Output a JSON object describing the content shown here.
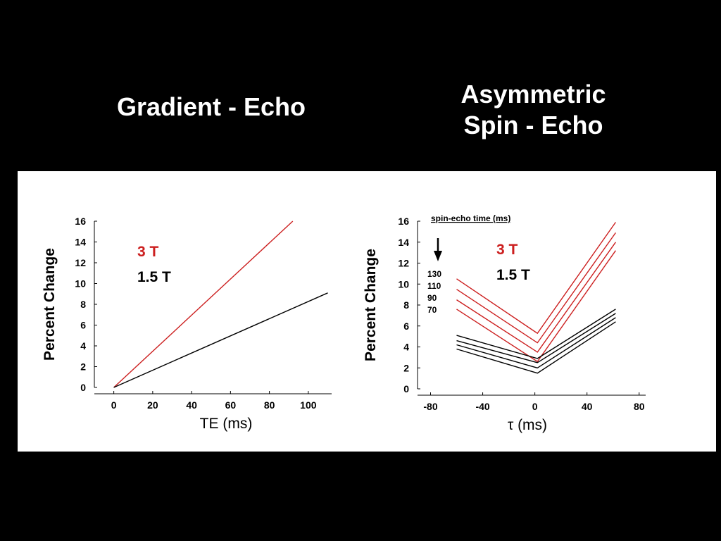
{
  "titles": {
    "left": "Gradient - Echo",
    "right_line1": "Asymmetric",
    "right_line2": "Spin - Echo"
  },
  "colors": {
    "field_3T": "#cc1f1f",
    "field_1_5T": "#000000"
  },
  "chart_data": [
    {
      "type": "line",
      "title": "Gradient - Echo",
      "xlabel": "TE (ms)",
      "ylabel": "Percent Change",
      "xlim": [
        -10,
        112
      ],
      "ylim": [
        0,
        16
      ],
      "xticks": [
        0,
        20,
        40,
        60,
        80,
        100
      ],
      "yticks": [
        0,
        2,
        4,
        6,
        8,
        10,
        12,
        14,
        16
      ],
      "legend": [
        "3 T",
        "1.5 T"
      ],
      "series": [
        {
          "name": "3 T",
          "color": "#cc1f1f",
          "x": [
            0,
            92
          ],
          "y": [
            0,
            16
          ]
        },
        {
          "name": "1.5 T",
          "color": "#000000",
          "x": [
            0,
            110
          ],
          "y": [
            0,
            9.1
          ]
        }
      ]
    },
    {
      "type": "line",
      "title": "Asymmetric Spin - Echo",
      "xlabel": "τ (ms)",
      "ylabel": "Percent Change",
      "xlim": [
        -90,
        85
      ],
      "ylim": [
        0,
        16
      ],
      "xticks": [
        -80,
        -40,
        0,
        40,
        80
      ],
      "yticks": [
        0,
        2,
        4,
        6,
        8,
        10,
        12,
        14,
        16
      ],
      "legend": [
        "3 T",
        "1.5 T"
      ],
      "annotation": {
        "header": "spin-echo time (ms)",
        "values": [
          "130",
          "110",
          "90",
          "70"
        ]
      },
      "series": [
        {
          "name": "3 T",
          "label": "130",
          "color": "#cc1f1f",
          "x": [
            -60,
            2,
            62
          ],
          "y": [
            10.5,
            5.3,
            15.9
          ]
        },
        {
          "name": "3 T",
          "label": "110",
          "color": "#cc1f1f",
          "x": [
            -60,
            2,
            62
          ],
          "y": [
            9.5,
            4.4,
            14.9
          ]
        },
        {
          "name": "3 T",
          "label": "90",
          "color": "#cc1f1f",
          "x": [
            -60,
            2,
            62
          ],
          "y": [
            8.5,
            3.5,
            14.0
          ]
        },
        {
          "name": "3 T",
          "label": "70",
          "color": "#cc1f1f",
          "x": [
            -60,
            2,
            62
          ],
          "y": [
            7.6,
            2.6,
            13.2
          ]
        },
        {
          "name": "1.5 T",
          "label": "130",
          "color": "#000000",
          "x": [
            -60,
            2,
            62
          ],
          "y": [
            5.1,
            2.9,
            7.6
          ]
        },
        {
          "name": "1.5 T",
          "label": "110",
          "color": "#000000",
          "x": [
            -60,
            2,
            62
          ],
          "y": [
            4.6,
            2.5,
            7.2
          ]
        },
        {
          "name": "1.5 T",
          "label": "90",
          "color": "#000000",
          "x": [
            -60,
            2,
            62
          ],
          "y": [
            4.2,
            2.0,
            6.8
          ]
        },
        {
          "name": "1.5 T",
          "label": "70",
          "color": "#000000",
          "x": [
            -60,
            2,
            62
          ],
          "y": [
            3.8,
            1.5,
            6.4
          ]
        }
      ]
    }
  ]
}
